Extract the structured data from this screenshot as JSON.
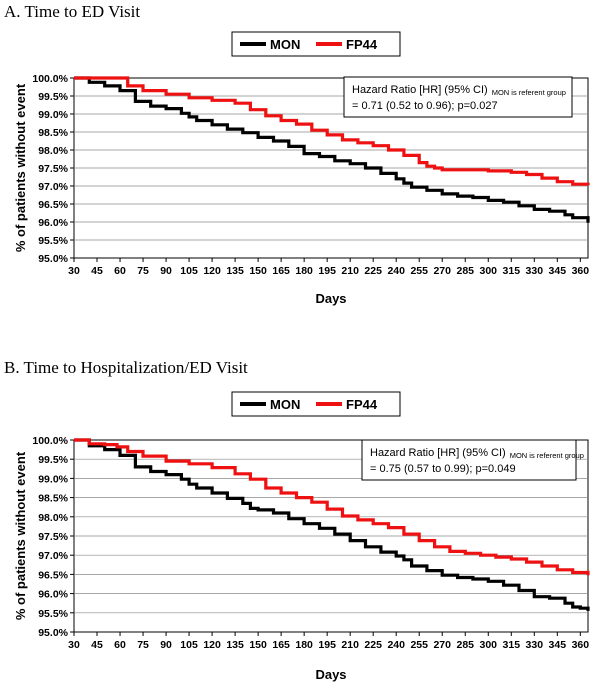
{
  "chart_data": [
    {
      "type": "line",
      "title": "A.  Time to ED Visit",
      "xlabel": "Days",
      "ylabel": "% of patients without event",
      "xlim": [
        30,
        365
      ],
      "ylim": [
        95.0,
        100.0
      ],
      "x_ticks": [
        "30",
        "45",
        "60",
        "75",
        "90",
        "105",
        "120",
        "135",
        "150",
        "165",
        "180",
        "195",
        "210",
        "225",
        "240",
        "255",
        "270",
        "285",
        "300",
        "315",
        "330",
        "345",
        "360"
      ],
      "y_ticks": [
        "100.0%",
        "99.5%",
        "99.0%",
        "98.5%",
        "98.0%",
        "97.5%",
        "97.0%",
        "96.5%",
        "96.0%",
        "95.5%",
        "95.0%"
      ],
      "grid": "horizontal",
      "legend": {
        "placement": "top",
        "entries": [
          "MON",
          "FP44"
        ]
      },
      "annotation": {
        "line1": "Hazard Ratio [HR] (95% CI)",
        "line1_sub": "MON is referent group",
        "line2": "= 0.71 (0.52 to 0.96); p=0.027"
      },
      "series": [
        {
          "name": "MON",
          "color": "#000000",
          "x": [
            30,
            40,
            50,
            60,
            70,
            80,
            90,
            100,
            105,
            110,
            120,
            130,
            140,
            150,
            160,
            170,
            180,
            190,
            200,
            210,
            220,
            230,
            240,
            245,
            250,
            260,
            270,
            280,
            290,
            300,
            310,
            320,
            330,
            340,
            350,
            355,
            360,
            365
          ],
          "y": [
            100.0,
            99.88,
            99.78,
            99.65,
            99.35,
            99.22,
            99.15,
            99.02,
            98.92,
            98.82,
            98.7,
            98.58,
            98.48,
            98.35,
            98.25,
            98.1,
            97.9,
            97.82,
            97.7,
            97.62,
            97.5,
            97.35,
            97.2,
            97.08,
            96.97,
            96.88,
            96.78,
            96.72,
            96.68,
            96.6,
            96.55,
            96.45,
            96.35,
            96.3,
            96.2,
            96.12,
            96.12,
            95.98
          ]
        },
        {
          "name": "FP44",
          "color": "#ee1111",
          "x": [
            30,
            40,
            50,
            58,
            65,
            75,
            90,
            105,
            120,
            135,
            145,
            155,
            165,
            175,
            185,
            195,
            205,
            215,
            225,
            235,
            245,
            255,
            260,
            265,
            270,
            280,
            290,
            300,
            315,
            325,
            335,
            345,
            355,
            365
          ],
          "y": [
            100.0,
            100.0,
            100.0,
            100.0,
            99.78,
            99.65,
            99.55,
            99.45,
            99.38,
            99.3,
            99.12,
            98.95,
            98.82,
            98.72,
            98.55,
            98.42,
            98.28,
            98.2,
            98.12,
            98.0,
            97.85,
            97.65,
            97.55,
            97.5,
            97.45,
            97.45,
            97.45,
            97.42,
            97.38,
            97.32,
            97.22,
            97.12,
            97.05,
            97.02
          ]
        }
      ]
    },
    {
      "type": "line",
      "title": "B.  Time to Hospitalization/ED Visit",
      "xlabel": "Days",
      "ylabel": "% of patients without event",
      "xlim": [
        30,
        365
      ],
      "ylim": [
        95.0,
        100.0
      ],
      "x_ticks": [
        "30",
        "45",
        "60",
        "75",
        "90",
        "105",
        "120",
        "135",
        "150",
        "165",
        "180",
        "195",
        "210",
        "225",
        "240",
        "255",
        "270",
        "285",
        "300",
        "315",
        "330",
        "345",
        "360"
      ],
      "y_ticks": [
        "100.0%",
        "99.5%",
        "99.0%",
        "98.5%",
        "98.0%",
        "97.5%",
        "97.0%",
        "96.5%",
        "96.0%",
        "95.5%",
        "95.0%"
      ],
      "grid": "horizontal",
      "legend": {
        "placement": "top",
        "entries": [
          "MON",
          "FP44"
        ]
      },
      "annotation": {
        "line1": "Hazard Ratio [HR] (95% CI)",
        "line1_sub": "MON is referent group",
        "line2": "= 0.75 (0.57 to 0.99); p=0.049"
      },
      "series": [
        {
          "name": "MON",
          "color": "#000000",
          "x": [
            30,
            40,
            50,
            60,
            70,
            80,
            90,
            100,
            105,
            110,
            120,
            130,
            140,
            145,
            150,
            160,
            170,
            180,
            190,
            200,
            210,
            220,
            230,
            240,
            245,
            250,
            260,
            270,
            280,
            290,
            300,
            310,
            320,
            330,
            340,
            350,
            355,
            360,
            365
          ],
          "y": [
            100.0,
            99.85,
            99.75,
            99.6,
            99.3,
            99.18,
            99.1,
            98.98,
            98.85,
            98.75,
            98.62,
            98.48,
            98.35,
            98.22,
            98.18,
            98.1,
            97.95,
            97.82,
            97.7,
            97.55,
            97.38,
            97.22,
            97.08,
            96.98,
            96.88,
            96.72,
            96.6,
            96.48,
            96.42,
            96.38,
            96.32,
            96.22,
            96.08,
            95.92,
            95.88,
            95.75,
            95.65,
            95.62,
            95.55
          ]
        },
        {
          "name": "FP44",
          "color": "#ee1111",
          "x": [
            30,
            40,
            50,
            58,
            65,
            75,
            90,
            105,
            120,
            135,
            145,
            155,
            165,
            175,
            185,
            195,
            205,
            215,
            225,
            235,
            245,
            255,
            265,
            275,
            285,
            295,
            305,
            315,
            325,
            335,
            345,
            355,
            365
          ],
          "y": [
            100.0,
            99.9,
            99.88,
            99.82,
            99.7,
            99.58,
            99.45,
            99.38,
            99.28,
            99.12,
            98.98,
            98.75,
            98.62,
            98.5,
            98.38,
            98.2,
            98.02,
            97.92,
            97.82,
            97.72,
            97.55,
            97.38,
            97.22,
            97.1,
            97.05,
            97.0,
            96.95,
            96.9,
            96.82,
            96.72,
            96.62,
            96.55,
            96.48
          ]
        }
      ]
    }
  ]
}
